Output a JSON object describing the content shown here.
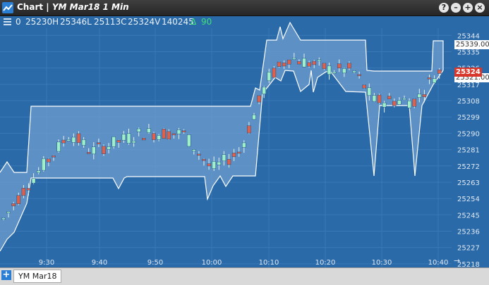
{
  "window": {
    "title_prefix": "Chart |",
    "title_symbol": "YM Mar18 1 Min",
    "buttons": [
      "?",
      "–",
      "+",
      "×"
    ]
  },
  "stats": {
    "open_prefix": "0",
    "high": "25230H",
    "low": "25346L",
    "close": "25113C",
    "volume": "25324V",
    "bar_volume": "140245",
    "change_symbol": "Δ",
    "change": "90",
    "change_color": "#3fe07a"
  },
  "colors": {
    "background": "#2b6aa8",
    "up": "#9ff0c8",
    "down": "#e0604a",
    "band_fill": "#6f9fd0",
    "band_line": "#ffffff"
  },
  "bottom": {
    "add_label": "+",
    "symbol_tab": "YM Mar18"
  },
  "price_labels": {
    "upper": "25339.00",
    "last": "25324",
    "lower": "25321.00"
  },
  "chart_data": {
    "type": "candlestick",
    "y_ticks": [
      25344,
      25335,
      25326,
      25317,
      25308,
      25299,
      25290,
      25281,
      25272,
      25263,
      25254,
      25245,
      25236,
      25227,
      25218
    ],
    "ylim": [
      25216,
      25348
    ],
    "x_ticks": [
      "9:30",
      "9:40",
      "9:50",
      "10:00",
      "10:10",
      "10:20",
      "10:30",
      "10:40"
    ],
    "grid": true,
    "overlay": "price channel band",
    "last_price": 25324,
    "band_upper_value": 25339,
    "band_lower_value": 25321
  }
}
